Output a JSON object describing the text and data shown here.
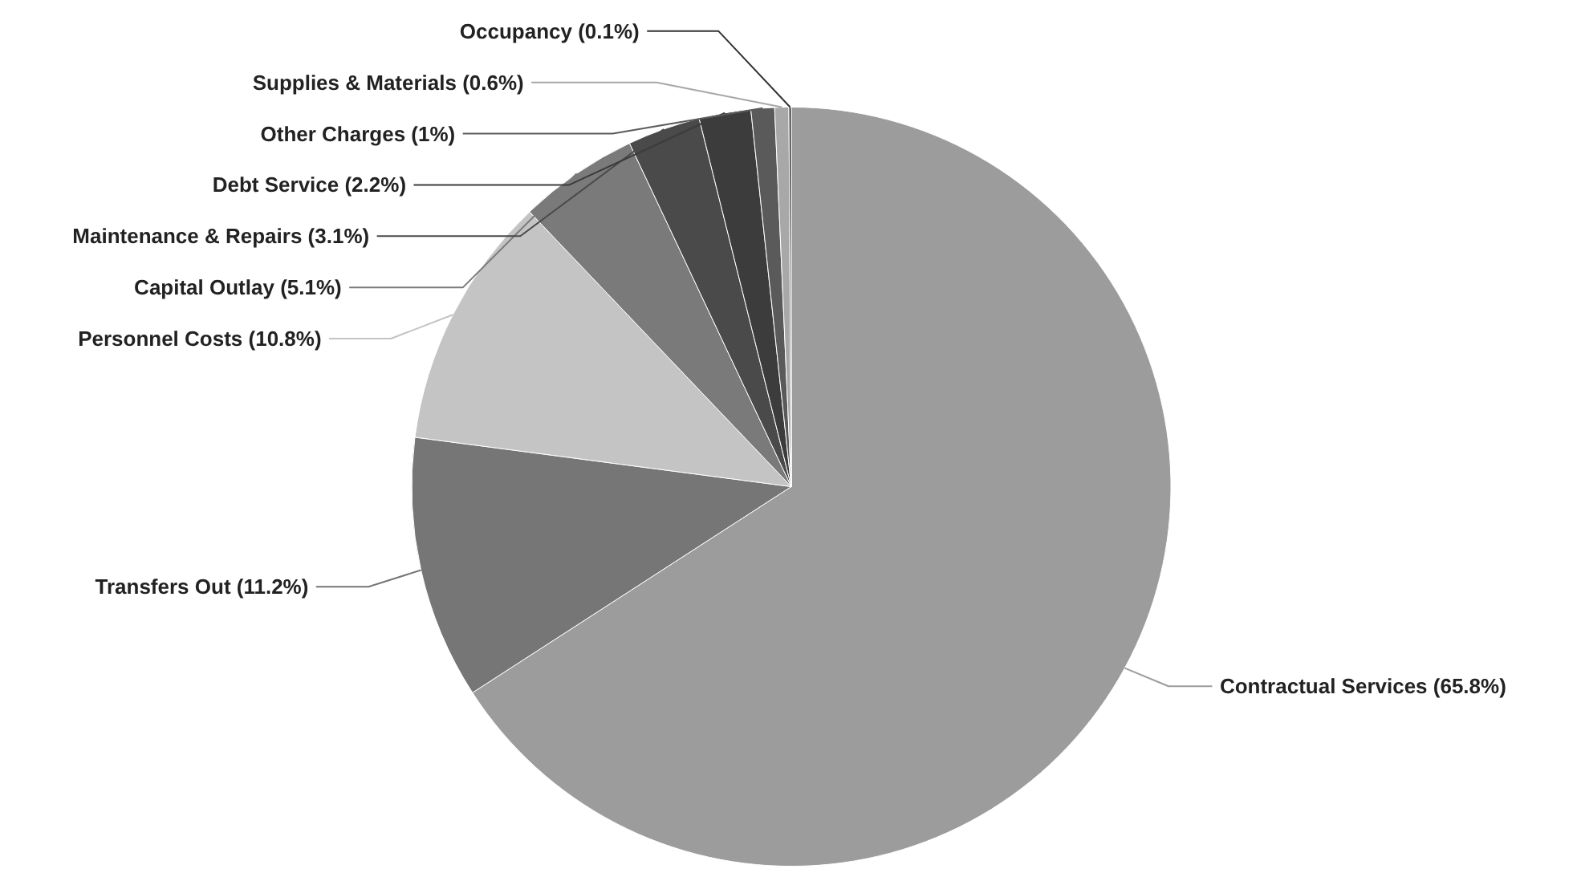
{
  "chart_data": {
    "type": "pie",
    "categories": [
      "Contractual Services",
      "Transfers Out",
      "Personnel Costs",
      "Capital Outlay",
      "Maintenance & Repairs",
      "Debt Service",
      "Other Charges",
      "Supplies & Materials",
      "Occupancy"
    ],
    "values": [
      65.8,
      11.2,
      10.8,
      5.1,
      3.1,
      2.2,
      1,
      0.6,
      0.1
    ],
    "value_labels": [
      "(65.8%)",
      "(11.2%)",
      "(10.8%)",
      "(5.1%)",
      "(3.1%)",
      "(2.2%)",
      "(1%)",
      "(0.6%)",
      "(0.1%)"
    ],
    "colors": [
      "#9c9c9c",
      "#767676",
      "#c4c4c4",
      "#7a7a7a",
      "#4a4a4a",
      "#3c3c3c",
      "#5a5a5a",
      "#a8a8a8",
      "#333333"
    ]
  }
}
